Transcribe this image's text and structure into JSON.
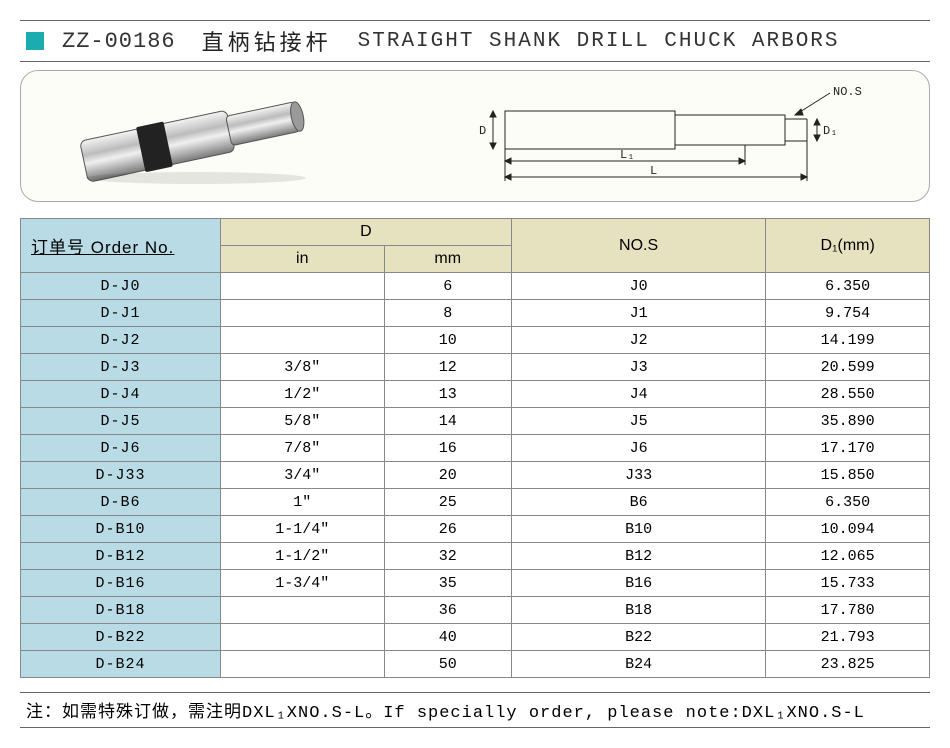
{
  "header": {
    "code": "ZZ-00186",
    "cn": "直柄钻接杆",
    "en": "STRAIGHT SHANK DRILL CHUCK ARBORS"
  },
  "table": {
    "order_head": "订单号 Order No.",
    "d_head": "D",
    "in_head": "in",
    "mm_head": "mm",
    "nos_head": "NO.S",
    "d1_head": "D₁(mm)",
    "rows": [
      {
        "order": "D-J0",
        "in": "",
        "mm": "6",
        "nos": "J0",
        "d1": "6.350"
      },
      {
        "order": "D-J1",
        "in": "",
        "mm": "8",
        "nos": "J1",
        "d1": "9.754"
      },
      {
        "order": "D-J2",
        "in": "",
        "mm": "10",
        "nos": "J2",
        "d1": "14.199"
      },
      {
        "order": "D-J3",
        "in": "3/8\"",
        "mm": "12",
        "nos": "J3",
        "d1": "20.599"
      },
      {
        "order": "D-J4",
        "in": "1/2\"",
        "mm": "13",
        "nos": "J4",
        "d1": "28.550"
      },
      {
        "order": "D-J5",
        "in": "5/8\"",
        "mm": "14",
        "nos": "J5",
        "d1": "35.890"
      },
      {
        "order": "D-J6",
        "in": "7/8\"",
        "mm": "16",
        "nos": "J6",
        "d1": "17.170"
      },
      {
        "order": "D-J33",
        "in": "3/4\"",
        "mm": "20",
        "nos": "J33",
        "d1": "15.850"
      },
      {
        "order": "D-B6",
        "in": "1\"",
        "mm": "25",
        "nos": "B6",
        "d1": "6.350"
      },
      {
        "order": "D-B10",
        "in": "1-1/4\"",
        "mm": "26",
        "nos": "B10",
        "d1": "10.094"
      },
      {
        "order": "D-B12",
        "in": "1-1/2\"",
        "mm": "32",
        "nos": "B12",
        "d1": "12.065"
      },
      {
        "order": "D-B16",
        "in": "1-3/4\"",
        "mm": "35",
        "nos": "B16",
        "d1": "15.733"
      },
      {
        "order": "D-B18",
        "in": "",
        "mm": "36",
        "nos": "B18",
        "d1": "17.780"
      },
      {
        "order": "D-B22",
        "in": "",
        "mm": "40",
        "nos": "B22",
        "d1": "21.793"
      },
      {
        "order": "D-B24",
        "in": "",
        "mm": "50",
        "nos": "B24",
        "d1": "23.825"
      }
    ]
  },
  "footnote": "注：如需特殊订做，需注明DXL₁XNO.S-L。If specially order, please note:DXL₁XNO.S-L",
  "diagram_labels": {
    "d": "D",
    "l1": "L₁",
    "l": "L",
    "nos": "NO.S",
    "d1": "D₁"
  }
}
